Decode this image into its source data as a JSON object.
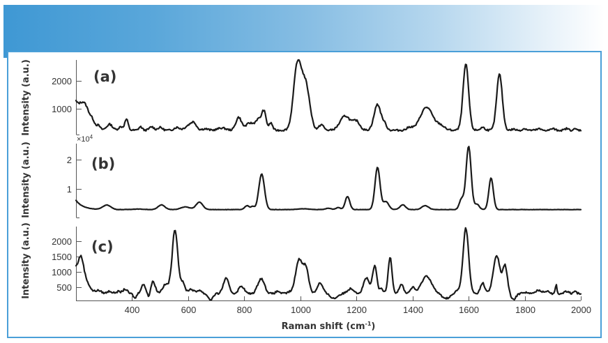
{
  "banner": {
    "gradient_start": "#3f98d4",
    "gradient_end": "#ffffff"
  },
  "frame": {
    "border_color": "#4a9fd8"
  },
  "chart_data": {
    "type": "line",
    "title": "",
    "xlabel": "Raman shift (cm-1)",
    "xlabel_main": "Raman shift (cm",
    "xlabel_sup": "-1",
    "xlabel_close": ")",
    "xlim": [
      200,
      2000
    ],
    "xticks": [
      400,
      600,
      800,
      1000,
      1200,
      1400,
      1600,
      1800,
      2000
    ],
    "xtick_labels": [
      "400",
      "600",
      "800",
      "1000",
      "1200",
      "1400",
      "1600",
      "1800",
      "2000"
    ],
    "grid": false,
    "legend": "none",
    "panels": [
      {
        "label": "(a)",
        "ylabel": "Intensity (a.u.)",
        "ylim": [
          150,
          2750
        ],
        "yticks": [
          1000,
          2000
        ],
        "ytick_labels": [
          "1000",
          "2000"
        ],
        "multiplier": "",
        "baseline": 300,
        "start_value": 1150,
        "peaks": [
          [
            230,
            700,
            18
          ],
          [
            260,
            150,
            8
          ],
          [
            280,
            120,
            6
          ],
          [
            320,
            200,
            10
          ],
          [
            360,
            120,
            8
          ],
          [
            380,
            380,
            6
          ],
          [
            430,
            120,
            6
          ],
          [
            470,
            120,
            8
          ],
          [
            500,
            100,
            8
          ],
          [
            560,
            100,
            10
          ],
          [
            600,
            150,
            12
          ],
          [
            620,
            250,
            10
          ],
          [
            660,
            50,
            10
          ],
          [
            720,
            80,
            14
          ],
          [
            780,
            450,
            10
          ],
          [
            820,
            250,
            14
          ],
          [
            850,
            350,
            10
          ],
          [
            870,
            650,
            8
          ],
          [
            895,
            250,
            6
          ],
          [
            990,
            2300,
            14
          ],
          [
            1020,
            1500,
            14
          ],
          [
            1075,
            200,
            8
          ],
          [
            1160,
            500,
            18
          ],
          [
            1200,
            300,
            12
          ],
          [
            1275,
            900,
            12
          ],
          [
            1300,
            200,
            8
          ],
          [
            1390,
            100,
            10
          ],
          [
            1450,
            800,
            22
          ],
          [
            1500,
            150,
            14
          ],
          [
            1590,
            2300,
            10
          ],
          [
            1650,
            100,
            8
          ],
          [
            1710,
            1950,
            10
          ],
          [
            1760,
            40,
            6
          ],
          [
            1800,
            60,
            6
          ],
          [
            1850,
            50,
            6
          ],
          [
            1900,
            60,
            6
          ],
          [
            1950,
            60,
            6
          ],
          [
            1980,
            40,
            6
          ]
        ]
      },
      {
        "label": "(b)",
        "ylabel": "Intensity (a.u.)",
        "ylim": [
          -0.2,
          2.6
        ],
        "yticks": [
          1,
          2
        ],
        "ytick_labels": [
          "1",
          "2"
        ],
        "multiplier": "×10",
        "multiplier_exp": "4",
        "baseline": 0.1,
        "start_value": 0.45,
        "peaks": [
          [
            310,
            0.17,
            14
          ],
          [
            420,
            0.02,
            20
          ],
          [
            505,
            0.18,
            12
          ],
          [
            590,
            0.1,
            16
          ],
          [
            640,
            0.28,
            12
          ],
          [
            810,
            0.15,
            8
          ],
          [
            830,
            0.12,
            6
          ],
          [
            862,
            1.35,
            10
          ],
          [
            1010,
            0.03,
            20
          ],
          [
            1100,
            0.05,
            10
          ],
          [
            1135,
            0.08,
            8
          ],
          [
            1168,
            0.5,
            8
          ],
          [
            1275,
            1.6,
            9
          ],
          [
            1305,
            0.3,
            10
          ],
          [
            1365,
            0.18,
            10
          ],
          [
            1445,
            0.15,
            12
          ],
          [
            1575,
            0.4,
            8
          ],
          [
            1600,
            2.4,
            9
          ],
          [
            1630,
            0.2,
            8
          ],
          [
            1680,
            1.2,
            8
          ]
        ]
      },
      {
        "label": "(c)",
        "ylabel": "Intensity (a.u.)",
        "ylim": [
          80,
          2500
        ],
        "yticks": [
          500,
          1000,
          1500,
          2000
        ],
        "ytick_labels": [
          "500",
          "1000",
          "1500",
          "2000"
        ],
        "multiplier": "",
        "baseline": 300,
        "start_value": 1050,
        "peaks": [
          [
            218,
            850,
            10
          ],
          [
            240,
            200,
            10
          ],
          [
            280,
            80,
            10
          ],
          [
            320,
            80,
            8
          ],
          [
            350,
            70,
            8
          ],
          [
            375,
            150,
            8
          ],
          [
            410,
            -150,
            5
          ],
          [
            440,
            300,
            8
          ],
          [
            460,
            -150,
            4
          ],
          [
            475,
            400,
            8
          ],
          [
            520,
            300,
            12
          ],
          [
            553,
            2100,
            10
          ],
          [
            580,
            350,
            8
          ],
          [
            610,
            150,
            10
          ],
          [
            640,
            120,
            8
          ],
          [
            680,
            -200,
            8
          ],
          [
            735,
            500,
            10
          ],
          [
            790,
            250,
            10
          ],
          [
            860,
            500,
            12
          ],
          [
            920,
            80,
            8
          ],
          [
            960,
            50,
            8
          ],
          [
            995,
            1100,
            12
          ],
          [
            1020,
            800,
            10
          ],
          [
            1070,
            350,
            10
          ],
          [
            1120,
            -150,
            12
          ],
          [
            1180,
            170,
            12
          ],
          [
            1235,
            520,
            10
          ],
          [
            1265,
            900,
            8
          ],
          [
            1290,
            150,
            6
          ],
          [
            1320,
            1200,
            7
          ],
          [
            1360,
            300,
            8
          ],
          [
            1400,
            200,
            8
          ],
          [
            1450,
            580,
            18
          ],
          [
            1520,
            -150,
            14
          ],
          [
            1560,
            100,
            8
          ],
          [
            1590,
            2150,
            10
          ],
          [
            1650,
            350,
            8
          ],
          [
            1700,
            1250,
            12
          ],
          [
            1730,
            900,
            8
          ],
          [
            1760,
            -200,
            8
          ],
          [
            1800,
            50,
            10
          ],
          [
            1850,
            120,
            10
          ],
          [
            1880,
            100,
            8
          ],
          [
            1912,
            300,
            3
          ],
          [
            1950,
            80,
            8
          ],
          [
            1980,
            60,
            6
          ]
        ]
      }
    ]
  }
}
